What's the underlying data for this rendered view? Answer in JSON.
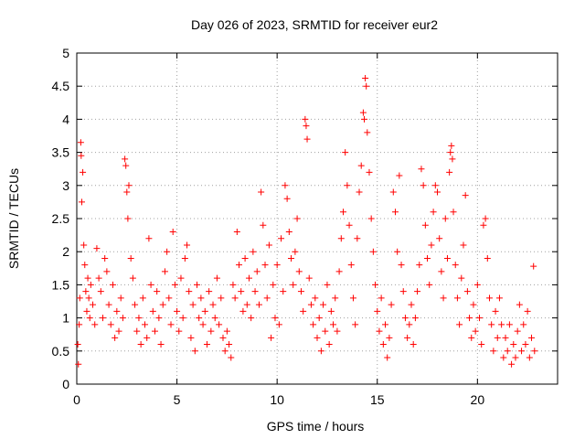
{
  "chart_data": {
    "type": "scatter",
    "title": "Day 026 of 2023, SRMTID for receiver eur2",
    "xlabel": "GPS time / hours",
    "ylabel": "SRMTID / TECUs",
    "xlim": [
      0,
      24
    ],
    "ylim": [
      0,
      5
    ],
    "xticks": [
      0,
      5,
      10,
      15,
      20
    ],
    "xtick_labels": [
      "0",
      "5",
      "10",
      "15",
      "20"
    ],
    "yticks": [
      0,
      0.5,
      1,
      1.5,
      2,
      2.5,
      3,
      3.5,
      4,
      4.5,
      5
    ],
    "ytick_labels": [
      "0",
      "0.5",
      "1",
      "1.5",
      "2",
      "2.5",
      "3",
      "3.5",
      "4",
      "4.5",
      "5"
    ],
    "grid": true,
    "series": [
      {
        "name": "SRMTID",
        "color": "#ff0000",
        "marker": "plus",
        "points": [
          [
            0.05,
            0.6
          ],
          [
            0.08,
            0.3
          ],
          [
            0.12,
            0.9
          ],
          [
            0.15,
            1.3
          ],
          [
            0.2,
            3.65
          ],
          [
            0.22,
            3.45
          ],
          [
            0.25,
            2.75
          ],
          [
            0.3,
            3.2
          ],
          [
            0.35,
            2.1
          ],
          [
            0.4,
            1.8
          ],
          [
            0.45,
            1.4
          ],
          [
            0.5,
            1.1
          ],
          [
            0.55,
            1.6
          ],
          [
            0.6,
            1.3
          ],
          [
            0.65,
            1.0
          ],
          [
            0.7,
            1.5
          ],
          [
            0.8,
            1.2
          ],
          [
            0.9,
            0.9
          ],
          [
            1.0,
            2.05
          ],
          [
            1.1,
            1.6
          ],
          [
            1.2,
            1.4
          ],
          [
            1.3,
            1.0
          ],
          [
            1.4,
            1.9
          ],
          [
            1.5,
            1.7
          ],
          [
            1.6,
            1.2
          ],
          [
            1.7,
            0.9
          ],
          [
            1.8,
            1.5
          ],
          [
            1.9,
            0.7
          ],
          [
            2.0,
            1.1
          ],
          [
            2.1,
            0.8
          ],
          [
            2.2,
            1.3
          ],
          [
            2.3,
            1.0
          ],
          [
            2.4,
            3.4
          ],
          [
            2.45,
            3.3
          ],
          [
            2.5,
            2.9
          ],
          [
            2.55,
            2.5
          ],
          [
            2.6,
            3.0
          ],
          [
            2.7,
            1.9
          ],
          [
            2.8,
            1.6
          ],
          [
            2.9,
            1.2
          ],
          [
            3.0,
            0.8
          ],
          [
            3.1,
            1.0
          ],
          [
            3.2,
            0.6
          ],
          [
            3.3,
            1.3
          ],
          [
            3.4,
            0.9
          ],
          [
            3.5,
            0.7
          ],
          [
            3.6,
            2.2
          ],
          [
            3.7,
            1.5
          ],
          [
            3.8,
            1.1
          ],
          [
            3.9,
            0.8
          ],
          [
            4.0,
            1.4
          ],
          [
            4.1,
            1.0
          ],
          [
            4.2,
            0.6
          ],
          [
            4.3,
            1.2
          ],
          [
            4.4,
            1.7
          ],
          [
            4.5,
            2.0
          ],
          [
            4.6,
            1.3
          ],
          [
            4.7,
            0.9
          ],
          [
            4.8,
            2.3
          ],
          [
            4.9,
            1.5
          ],
          [
            5.0,
            1.1
          ],
          [
            5.1,
            0.8
          ],
          [
            5.2,
            1.6
          ],
          [
            5.3,
            1.0
          ],
          [
            5.4,
            1.9
          ],
          [
            5.5,
            2.1
          ],
          [
            5.6,
            1.4
          ],
          [
            5.7,
            0.7
          ],
          [
            5.8,
            1.2
          ],
          [
            5.9,
            0.5
          ],
          [
            6.0,
            1.5
          ],
          [
            6.1,
            1.0
          ],
          [
            6.2,
            1.3
          ],
          [
            6.3,
            0.9
          ],
          [
            6.4,
            1.1
          ],
          [
            6.5,
            0.6
          ],
          [
            6.6,
            1.4
          ],
          [
            6.7,
            0.8
          ],
          [
            6.8,
            1.2
          ],
          [
            6.9,
            1.0
          ],
          [
            7.0,
            1.6
          ],
          [
            7.1,
            0.9
          ],
          [
            7.2,
            1.3
          ],
          [
            7.3,
            0.7
          ],
          [
            7.4,
            0.5
          ],
          [
            7.5,
            0.8
          ],
          [
            7.6,
            0.6
          ],
          [
            7.7,
            0.4
          ],
          [
            7.8,
            1.5
          ],
          [
            7.9,
            1.3
          ],
          [
            8.0,
            2.3
          ],
          [
            8.1,
            1.8
          ],
          [
            8.2,
            1.4
          ],
          [
            8.3,
            1.1
          ],
          [
            8.4,
            1.9
          ],
          [
            8.5,
            1.2
          ],
          [
            8.6,
            1.6
          ],
          [
            8.7,
            1.0
          ],
          [
            8.8,
            2.0
          ],
          [
            8.9,
            1.4
          ],
          [
            9.0,
            1.7
          ],
          [
            9.1,
            1.2
          ],
          [
            9.2,
            2.9
          ],
          [
            9.3,
            2.4
          ],
          [
            9.4,
            1.8
          ],
          [
            9.5,
            1.3
          ],
          [
            9.6,
            2.1
          ],
          [
            9.7,
            0.7
          ],
          [
            9.8,
            1.5
          ],
          [
            9.9,
            1.0
          ],
          [
            10.0,
            1.8
          ],
          [
            10.1,
            0.9
          ],
          [
            10.2,
            2.2
          ],
          [
            10.3,
            1.4
          ],
          [
            10.4,
            3.0
          ],
          [
            10.5,
            2.8
          ],
          [
            10.6,
            2.3
          ],
          [
            10.7,
            1.9
          ],
          [
            10.8,
            1.5
          ],
          [
            10.9,
            2.0
          ],
          [
            11.0,
            2.5
          ],
          [
            11.1,
            1.7
          ],
          [
            11.2,
            1.4
          ],
          [
            11.3,
            1.1
          ],
          [
            11.4,
            4.0
          ],
          [
            11.45,
            3.9
          ],
          [
            11.5,
            3.7
          ],
          [
            11.6,
            1.6
          ],
          [
            11.7,
            1.2
          ],
          [
            11.8,
            0.9
          ],
          [
            11.9,
            1.3
          ],
          [
            12.0,
            0.7
          ],
          [
            12.1,
            1.0
          ],
          [
            12.2,
            0.5
          ],
          [
            12.3,
            1.2
          ],
          [
            12.4,
            0.8
          ],
          [
            12.5,
            1.5
          ],
          [
            12.6,
            0.6
          ],
          [
            12.7,
            1.1
          ],
          [
            12.8,
            0.9
          ],
          [
            12.9,
            1.3
          ],
          [
            13.0,
            0.8
          ],
          [
            13.1,
            1.7
          ],
          [
            13.2,
            2.2
          ],
          [
            13.3,
            2.6
          ],
          [
            13.4,
            3.5
          ],
          [
            13.5,
            3.0
          ],
          [
            13.6,
            2.4
          ],
          [
            13.7,
            1.8
          ],
          [
            13.8,
            1.3
          ],
          [
            13.9,
            0.9
          ],
          [
            14.0,
            2.2
          ],
          [
            14.1,
            2.9
          ],
          [
            14.2,
            3.3
          ],
          [
            14.3,
            4.1
          ],
          [
            14.35,
            4.0
          ],
          [
            14.4,
            4.62
          ],
          [
            14.45,
            4.5
          ],
          [
            14.5,
            3.8
          ],
          [
            14.6,
            3.2
          ],
          [
            14.7,
            2.5
          ],
          [
            14.8,
            2.0
          ],
          [
            14.9,
            1.5
          ],
          [
            15.0,
            1.1
          ],
          [
            15.1,
            0.8
          ],
          [
            15.2,
            1.3
          ],
          [
            15.3,
            0.6
          ],
          [
            15.4,
            0.9
          ],
          [
            15.5,
            0.4
          ],
          [
            15.6,
            0.7
          ],
          [
            15.7,
            1.2
          ],
          [
            15.8,
            2.9
          ],
          [
            15.9,
            2.6
          ],
          [
            16.0,
            2.0
          ],
          [
            16.1,
            3.15
          ],
          [
            16.2,
            1.8
          ],
          [
            16.3,
            1.4
          ],
          [
            16.4,
            1.0
          ],
          [
            16.5,
            0.7
          ],
          [
            16.6,
            0.9
          ],
          [
            16.7,
            1.2
          ],
          [
            16.8,
            0.6
          ],
          [
            16.9,
            1.0
          ],
          [
            17.0,
            1.4
          ],
          [
            17.1,
            1.8
          ],
          [
            17.2,
            3.25
          ],
          [
            17.3,
            3.0
          ],
          [
            17.4,
            2.4
          ],
          [
            17.5,
            1.9
          ],
          [
            17.6,
            1.5
          ],
          [
            17.7,
            2.1
          ],
          [
            17.8,
            2.6
          ],
          [
            17.9,
            3.0
          ],
          [
            18.0,
            2.9
          ],
          [
            18.1,
            2.2
          ],
          [
            18.2,
            1.7
          ],
          [
            18.3,
            1.3
          ],
          [
            18.4,
            2.5
          ],
          [
            18.5,
            1.9
          ],
          [
            18.6,
            3.2
          ],
          [
            18.65,
            3.5
          ],
          [
            18.7,
            3.6
          ],
          [
            18.75,
            3.4
          ],
          [
            18.8,
            2.6
          ],
          [
            18.9,
            1.8
          ],
          [
            19.0,
            1.3
          ],
          [
            19.1,
            0.9
          ],
          [
            19.2,
            1.6
          ],
          [
            19.3,
            2.1
          ],
          [
            19.4,
            2.85
          ],
          [
            19.5,
            1.4
          ],
          [
            19.6,
            1.0
          ],
          [
            19.7,
            0.7
          ],
          [
            19.8,
            1.2
          ],
          [
            19.9,
            0.8
          ],
          [
            20.0,
            1.5
          ],
          [
            20.1,
            1.0
          ],
          [
            20.2,
            0.6
          ],
          [
            20.3,
            2.4
          ],
          [
            20.4,
            2.5
          ],
          [
            20.5,
            1.9
          ],
          [
            20.6,
            1.3
          ],
          [
            20.7,
            0.9
          ],
          [
            20.8,
            0.5
          ],
          [
            20.9,
            1.1
          ],
          [
            21.0,
            0.7
          ],
          [
            21.1,
            1.3
          ],
          [
            21.2,
            0.9
          ],
          [
            21.3,
            0.4
          ],
          [
            21.4,
            0.7
          ],
          [
            21.5,
            0.5
          ],
          [
            21.6,
            0.9
          ],
          [
            21.7,
            0.3
          ],
          [
            21.8,
            0.6
          ],
          [
            21.9,
            0.4
          ],
          [
            22.0,
            0.8
          ],
          [
            22.1,
            1.2
          ],
          [
            22.2,
            0.5
          ],
          [
            22.3,
            0.9
          ],
          [
            22.4,
            0.6
          ],
          [
            22.5,
            1.1
          ],
          [
            22.6,
            0.4
          ],
          [
            22.7,
            0.7
          ],
          [
            22.8,
            1.78
          ],
          [
            22.85,
            0.5
          ]
        ]
      }
    ]
  }
}
